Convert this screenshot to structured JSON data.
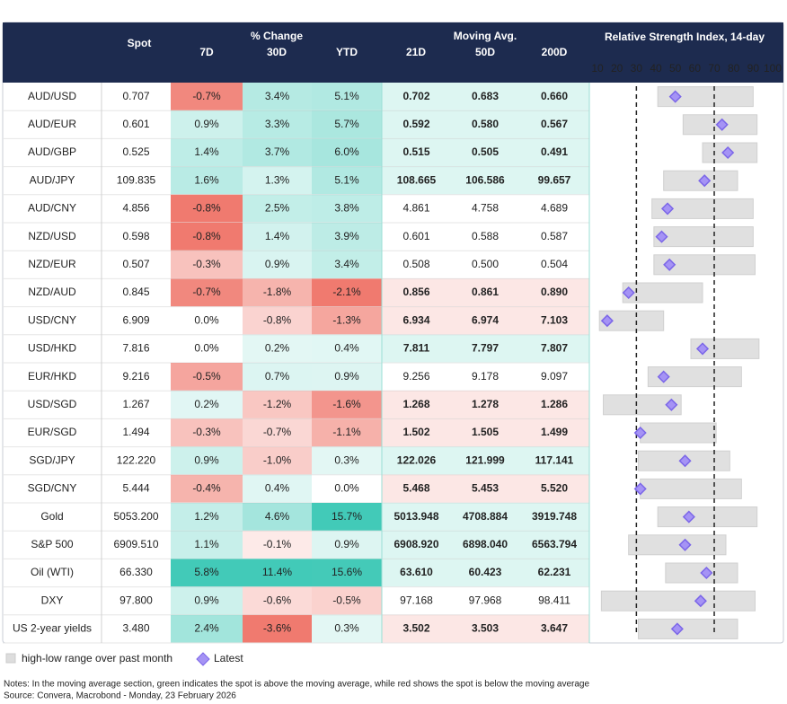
{
  "headers": {
    "spot": "Spot",
    "change": "% Change",
    "d7": "7D",
    "d30": "30D",
    "ytd": "YTD",
    "moving_avg": "Moving Avg.",
    "ma21": "21D",
    "ma50": "50D",
    "ma200": "200D",
    "rsi": "Relative Strength Index, 14-day"
  },
  "rsi_axis": {
    "xlim": [
      5,
      100
    ],
    "xticks": [
      10,
      20,
      30,
      40,
      50,
      60,
      70,
      80,
      90,
      100
    ],
    "reference_lines": [
      30,
      70
    ]
  },
  "rows": [
    {
      "name": "AUD/USD",
      "spot": "0.707",
      "d7": "-0.7%",
      "d30": "3.4%",
      "ytd": "5.1%",
      "ma21": "0.702",
      "ma50": "0.683",
      "ma200": "0.660",
      "rsi_latest": 50,
      "rsi_low": 41,
      "rsi_high": 90
    },
    {
      "name": "AUD/EUR",
      "spot": "0.601",
      "d7": "0.9%",
      "d30": "3.3%",
      "ytd": "5.7%",
      "ma21": "0.592",
      "ma50": "0.580",
      "ma200": "0.567",
      "rsi_latest": 74,
      "rsi_low": 54,
      "rsi_high": 92
    },
    {
      "name": "AUD/GBP",
      "spot": "0.525",
      "d7": "1.4%",
      "d30": "3.7%",
      "ytd": "6.0%",
      "ma21": "0.515",
      "ma50": "0.505",
      "ma200": "0.491",
      "rsi_latest": 77,
      "rsi_low": 64,
      "rsi_high": 92
    },
    {
      "name": "AUD/JPY",
      "spot": "109.835",
      "d7": "1.6%",
      "d30": "1.3%",
      "ytd": "5.1%",
      "ma21": "108.665",
      "ma50": "106.586",
      "ma200": "99.657",
      "rsi_latest": 65,
      "rsi_low": 44,
      "rsi_high": 82
    },
    {
      "name": "AUD/CNY",
      "spot": "4.856",
      "d7": "-0.8%",
      "d30": "2.5%",
      "ytd": "3.8%",
      "ma21": "4.861",
      "ma50": "4.758",
      "ma200": "4.689",
      "rsi_latest": 46,
      "rsi_low": 38,
      "rsi_high": 90
    },
    {
      "name": "NZD/USD",
      "spot": "0.598",
      "d7": "-0.8%",
      "d30": "1.4%",
      "ytd": "3.9%",
      "ma21": "0.601",
      "ma50": "0.588",
      "ma200": "0.587",
      "rsi_latest": 43,
      "rsi_low": 39,
      "rsi_high": 90
    },
    {
      "name": "NZD/EUR",
      "spot": "0.507",
      "d7": "-0.3%",
      "d30": "0.9%",
      "ytd": "3.4%",
      "ma21": "0.508",
      "ma50": "0.500",
      "ma200": "0.504",
      "rsi_latest": 47,
      "rsi_low": 39,
      "rsi_high": 91
    },
    {
      "name": "NZD/AUD",
      "spot": "0.845",
      "d7": "-0.7%",
      "d30": "-1.8%",
      "ytd": "-2.1%",
      "ma21": "0.856",
      "ma50": "0.861",
      "ma200": "0.890",
      "rsi_latest": 26,
      "rsi_low": 23,
      "rsi_high": 64
    },
    {
      "name": "USD/CNY",
      "spot": "6.909",
      "d7": "0.0%",
      "d30": "-0.8%",
      "ytd": "-1.3%",
      "ma21": "6.934",
      "ma50": "6.974",
      "ma200": "7.103",
      "rsi_latest": 15,
      "rsi_low": 11,
      "rsi_high": 44
    },
    {
      "name": "USD/HKD",
      "spot": "7.816",
      "d7": "0.0%",
      "d30": "0.2%",
      "ytd": "0.4%",
      "ma21": "7.811",
      "ma50": "7.797",
      "ma200": "7.807",
      "rsi_latest": 64,
      "rsi_low": 58,
      "rsi_high": 93
    },
    {
      "name": "EUR/HKD",
      "spot": "9.216",
      "d7": "-0.5%",
      "d30": "0.7%",
      "ytd": "0.9%",
      "ma21": "9.256",
      "ma50": "9.178",
      "ma200": "9.097",
      "rsi_latest": 44,
      "rsi_low": 36,
      "rsi_high": 84
    },
    {
      "name": "USD/SGD",
      "spot": "1.267",
      "d7": "0.2%",
      "d30": "-1.2%",
      "ytd": "-1.6%",
      "ma21": "1.268",
      "ma50": "1.278",
      "ma200": "1.286",
      "rsi_latest": 48,
      "rsi_low": 13,
      "rsi_high": 53
    },
    {
      "name": "EUR/SGD",
      "spot": "1.494",
      "d7": "-0.3%",
      "d30": "-0.7%",
      "ytd": "-1.1%",
      "ma21": "1.502",
      "ma50": "1.505",
      "ma200": "1.499",
      "rsi_latest": 32,
      "rsi_low": 32,
      "rsi_high": 71
    },
    {
      "name": "SGD/JPY",
      "spot": "122.220",
      "d7": "0.9%",
      "d30": "-1.0%",
      "ytd": "0.3%",
      "ma21": "122.026",
      "ma50": "121.999",
      "ma200": "117.141",
      "rsi_latest": 55,
      "rsi_low": 31,
      "rsi_high": 78
    },
    {
      "name": "SGD/CNY",
      "spot": "5.444",
      "d7": "-0.4%",
      "d30": "0.4%",
      "ytd": "0.0%",
      "ma21": "5.468",
      "ma50": "5.453",
      "ma200": "5.520",
      "rsi_latest": 32,
      "rsi_low": 32,
      "rsi_high": 84
    },
    {
      "name": "Gold",
      "spot": "5053.200",
      "d7": "1.2%",
      "d30": "4.6%",
      "ytd": "15.7%",
      "ma21": "5013.948",
      "ma50": "4708.884",
      "ma200": "3919.748",
      "rsi_latest": 57,
      "rsi_low": 41,
      "rsi_high": 92
    },
    {
      "name": "S&P 500",
      "spot": "6909.510",
      "d7": "1.1%",
      "d30": "-0.1%",
      "ytd": "0.9%",
      "ma21": "6908.920",
      "ma50": "6898.040",
      "ma200": "6563.794",
      "rsi_latest": 55,
      "rsi_low": 26,
      "rsi_high": 76
    },
    {
      "name": "Oil (WTI)",
      "spot": "66.330",
      "d7": "5.8%",
      "d30": "11.4%",
      "ytd": "15.6%",
      "ma21": "63.610",
      "ma50": "60.423",
      "ma200": "62.231",
      "rsi_latest": 66,
      "rsi_low": 45,
      "rsi_high": 82
    },
    {
      "name": "DXY",
      "spot": "97.800",
      "d7": "0.9%",
      "d30": "-0.6%",
      "ytd": "-0.5%",
      "ma21": "97.168",
      "ma50": "97.968",
      "ma200": "98.411",
      "rsi_latest": 63,
      "rsi_low": 12,
      "rsi_high": 91
    },
    {
      "name": "US 2-year yields",
      "spot": "3.480",
      "d7": "2.4%",
      "d30": "-3.6%",
      "ytd": "0.3%",
      "ma21": "3.502",
      "ma50": "3.503",
      "ma200": "3.647",
      "rsi_latest": 51,
      "rsi_low": 31,
      "rsi_high": 82
    }
  ],
  "legend": {
    "range": "high-low range over past month",
    "latest": "Latest"
  },
  "notes": "Notes: In the moving average section, green indicates the spot is above the moving average, while red shows the spot is below the moving average",
  "source": "Source: Convera, Macrobond - Monday, 23 February 2026"
}
